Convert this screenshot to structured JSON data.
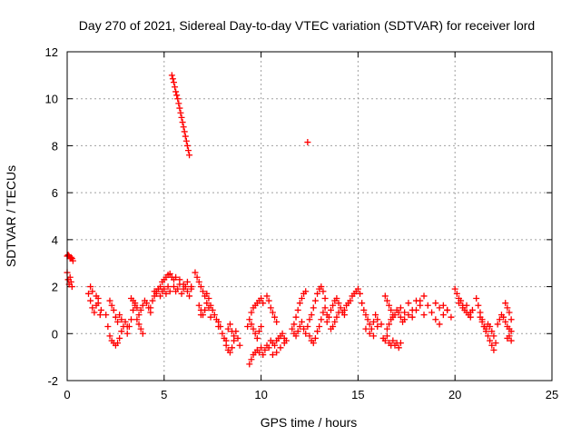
{
  "chart_data": {
    "type": "scatter",
    "title": "Day 270 of 2021, Sidereal Day-to-day VTEC variation (SDTVAR) for receiver lord",
    "xlabel": "GPS time / hours",
    "ylabel": "SDTVAR / TECUs",
    "xlim": [
      0,
      25
    ],
    "ylim": [
      -2,
      12
    ],
    "xticks": [
      0,
      5,
      10,
      15,
      20,
      25
    ],
    "yticks": [
      -2,
      0,
      2,
      4,
      6,
      8,
      10,
      12
    ],
    "grid": true,
    "marker": "plus",
    "color": "#ff0000",
    "series": [
      {
        "name": "SDTVAR",
        "segments": [
          {
            "x": [
              0.0,
              0.05,
              0.1,
              0.15,
              0.2,
              0.25,
              0.3
            ],
            "y": [
              3.3,
              3.35,
              3.3,
              3.2,
              3.25,
              3.2,
              3.1
            ]
          },
          {
            "x": [
              0.0,
              0.05,
              0.1,
              0.15,
              0.2,
              0.25
            ],
            "y": [
              2.6,
              2.3,
              2.1,
              2.4,
              2.2,
              2.0
            ]
          },
          {
            "x": [
              1.1,
              1.2,
              1.3,
              1.4,
              1.5,
              1.6,
              1.7
            ],
            "y": [
              1.7,
              1.4,
              1.1,
              0.9,
              1.2,
              1.5,
              0.8
            ]
          },
          {
            "x": [
              1.2,
              1.3,
              1.5,
              1.6,
              1.75
            ],
            "y": [
              2.0,
              1.8,
              1.6,
              1.3,
              1.0
            ]
          },
          {
            "x": [
              2.0,
              2.1,
              2.2,
              2.3,
              2.4,
              2.5,
              2.6,
              2.7,
              2.8,
              2.9,
              3.0,
              3.1
            ],
            "y": [
              0.8,
              0.3,
              -0.1,
              -0.3,
              -0.4,
              -0.5,
              -0.4,
              -0.2,
              0.1,
              0.3,
              0.5,
              0.3
            ]
          },
          {
            "x": [
              2.2,
              2.3,
              2.4,
              2.5,
              2.6,
              2.7,
              2.8
            ],
            "y": [
              1.4,
              1.2,
              1.0,
              0.7,
              0.5,
              0.8,
              0.6
            ]
          },
          {
            "x": [
              3.1,
              3.2,
              3.3,
              3.4,
              3.5,
              3.6,
              3.7,
              3.8,
              3.9,
              4.0,
              4.1,
              4.2,
              4.3
            ],
            "y": [
              0.0,
              0.3,
              0.6,
              1.0,
              1.3,
              1.1,
              0.8,
              1.0,
              1.2,
              1.4,
              1.3,
              1.1,
              0.9
            ]
          },
          {
            "x": [
              3.3,
              3.4,
              3.5,
              3.6,
              3.7,
              3.8,
              3.9
            ],
            "y": [
              1.5,
              1.4,
              1.2,
              0.6,
              0.4,
              0.2,
              0.0
            ]
          },
          {
            "x": [
              4.3,
              4.4,
              4.5,
              4.6,
              4.7,
              4.8,
              4.9,
              5.0,
              5.1,
              5.2,
              5.3,
              5.4,
              5.5
            ],
            "y": [
              1.1,
              1.4,
              1.6,
              1.8,
              1.9,
              2.0,
              2.2,
              2.3,
              2.4,
              2.5,
              2.55,
              2.4,
              2.3
            ]
          },
          {
            "x": [
              4.5,
              4.6,
              4.7,
              4.8,
              4.9,
              5.0,
              5.1,
              5.2,
              5.3
            ],
            "y": [
              1.8,
              1.7,
              1.9,
              1.6,
              1.8,
              1.9,
              1.7,
              2.0,
              1.8
            ]
          },
          {
            "x": [
              5.4,
              5.5,
              5.6,
              5.7,
              5.8,
              5.9,
              6.0,
              6.1,
              6.2,
              6.3
            ],
            "y": [
              11.0,
              10.7,
              10.3,
              10.0,
              9.6,
              9.2,
              8.8,
              8.4,
              8.0,
              7.6
            ]
          },
          {
            "x": [
              5.45,
              5.55,
              5.65,
              5.75,
              5.85,
              5.95,
              6.05,
              6.15,
              6.25
            ],
            "y": [
              10.85,
              10.5,
              10.15,
              9.8,
              9.4,
              9.0,
              8.6,
              8.2,
              7.8
            ]
          },
          {
            "x": [
              5.5,
              5.6,
              5.7,
              5.8,
              5.9,
              6.0,
              6.1,
              6.2,
              6.3,
              6.4
            ],
            "y": [
              2.0,
              1.8,
              1.9,
              2.1,
              1.7,
              1.9,
              2.0,
              1.8,
              1.6,
              1.9
            ]
          },
          {
            "x": [
              5.6,
              5.8,
              6.0,
              6.2,
              6.4
            ],
            "y": [
              2.4,
              2.3,
              2.1,
              2.2,
              2.0
            ]
          },
          {
            "x": [
              6.6,
              6.7,
              6.8,
              6.9,
              7.0,
              7.1
            ],
            "y": [
              2.6,
              2.4,
              2.2,
              2.0,
              1.8,
              1.6
            ]
          },
          {
            "x": [
              6.8,
              6.9,
              7.0,
              7.1,
              7.2,
              7.3,
              7.4
            ],
            "y": [
              1.2,
              1.0,
              0.8,
              1.0,
              1.3,
              1.1,
              0.7
            ]
          },
          {
            "x": [
              6.9
            ],
            "y": [
              0.8
            ]
          },
          {
            "x": [
              7.2,
              7.3,
              7.4,
              7.5,
              7.6,
              7.7,
              7.8
            ],
            "y": [
              1.7,
              1.5,
              1.2,
              1.0,
              0.8,
              0.6,
              0.3
            ]
          },
          {
            "x": [
              7.8,
              7.9,
              8.0,
              8.1,
              8.2,
              8.3,
              8.4,
              8.5,
              8.6
            ],
            "y": [
              0.5,
              0.3,
              0.0,
              -0.2,
              -0.3,
              0.2,
              0.4,
              0.1,
              -0.1
            ]
          },
          {
            "x": [
              8.2,
              8.3,
              8.4,
              8.5,
              8.6,
              8.7,
              8.8,
              8.9
            ],
            "y": [
              -0.5,
              -0.7,
              -0.8,
              -0.6,
              -0.3,
              0.1,
              -0.2,
              -0.5
            ]
          },
          {
            "x": [
              9.4,
              9.5,
              9.6,
              9.7,
              9.8,
              9.9,
              10.0,
              10.1,
              10.2,
              10.3,
              10.4
            ],
            "y": [
              -1.3,
              -1.1,
              -0.9,
              -0.8,
              -0.7,
              -0.8,
              -0.6,
              -0.9,
              -0.7,
              -0.5,
              -0.6
            ]
          },
          {
            "x": [
              9.3,
              9.4,
              9.5,
              9.6,
              9.7,
              9.8,
              9.9,
              10.0,
              10.1
            ],
            "y": [
              0.3,
              0.6,
              0.9,
              1.1,
              1.2,
              1.3,
              1.4,
              1.5,
              1.3
            ]
          },
          {
            "x": [
              9.5,
              9.6,
              9.7,
              9.8,
              9.9,
              10.0
            ],
            "y": [
              0.4,
              0.2,
              0.0,
              -0.2,
              0.1,
              0.3
            ]
          },
          {
            "x": [
              10.3,
              10.4,
              10.5,
              10.6,
              10.7,
              10.8
            ],
            "y": [
              1.6,
              1.4,
              1.1,
              0.9,
              0.7,
              0.5
            ]
          },
          {
            "x": [
              10.5,
              10.6,
              10.7,
              10.8,
              10.9,
              11.0,
              11.1,
              11.2,
              11.3
            ],
            "y": [
              -0.3,
              -0.4,
              -0.5,
              -0.3,
              -0.2,
              -0.1,
              0.0,
              -0.2,
              -0.3
            ]
          },
          {
            "x": [
              10.6,
              10.8,
              11.0,
              11.2
            ],
            "y": [
              -0.9,
              -0.8,
              -0.6,
              -0.4
            ]
          },
          {
            "x": [
              11.6,
              11.7,
              11.8,
              11.9,
              12.0,
              12.1,
              12.2,
              12.3
            ],
            "y": [
              0.2,
              0.4,
              0.7,
              1.0,
              1.3,
              1.5,
              1.7,
              1.8
            ]
          },
          {
            "x": [
              11.7,
              11.8,
              11.9,
              12.0,
              12.1,
              12.2,
              12.3,
              12.4,
              12.5
            ],
            "y": [
              0.0,
              -0.1,
              0.1,
              0.3,
              0.5,
              0.2,
              0.0,
              0.3,
              0.6
            ]
          },
          {
            "x": [
              12.4
            ],
            "y": [
              8.15
            ]
          },
          {
            "x": [
              12.5,
              12.6,
              12.7,
              12.8,
              12.9,
              13.0,
              13.1,
              13.2,
              13.3,
              13.4
            ],
            "y": [
              -0.1,
              -0.3,
              -0.4,
              -0.2,
              0.1,
              0.3,
              0.6,
              0.9,
              1.1,
              0.8
            ]
          },
          {
            "x": [
              12.6,
              12.7,
              12.8,
              12.9,
              13.0,
              13.1,
              13.2,
              13.3
            ],
            "y": [
              0.8,
              1.1,
              1.4,
              1.7,
              1.9,
              2.0,
              1.8,
              1.5
            ]
          },
          {
            "x": [
              13.4,
              13.5,
              13.6,
              13.7,
              13.8,
              13.9,
              14.0,
              14.1,
              14.2,
              14.3
            ],
            "y": [
              0.5,
              0.7,
              1.0,
              1.2,
              1.4,
              1.5,
              1.3,
              1.1,
              0.9,
              0.8
            ]
          },
          {
            "x": [
              13.6,
              13.7,
              13.8,
              13.9,
              14.0
            ],
            "y": [
              0.2,
              0.3,
              0.5,
              0.7,
              0.9
            ]
          },
          {
            "x": [
              14.3,
              14.4,
              14.5,
              14.6,
              14.7,
              14.8,
              14.9,
              15.0,
              15.1
            ],
            "y": [
              1.0,
              1.2,
              1.3,
              1.4,
              1.6,
              1.7,
              1.8,
              1.9,
              1.7
            ]
          },
          {
            "x": [
              15.2,
              15.3,
              15.4,
              15.5,
              15.6,
              15.7,
              15.8,
              15.9,
              16.0
            ],
            "y": [
              1.3,
              1.0,
              0.8,
              0.6,
              0.4,
              0.2,
              0.5,
              0.8,
              0.6
            ]
          },
          {
            "x": [
              15.4,
              15.6,
              15.8,
              16.0,
              16.2
            ],
            "y": [
              0.2,
              0.0,
              -0.1,
              0.3,
              0.4
            ]
          },
          {
            "x": [
              16.3,
              16.4,
              16.5,
              16.6,
              16.7,
              16.8,
              16.9,
              17.0,
              17.1,
              17.2
            ],
            "y": [
              -0.2,
              -0.3,
              -0.1,
              -0.4,
              -0.5,
              -0.3,
              -0.5,
              -0.4,
              -0.6,
              -0.4
            ]
          },
          {
            "x": [
              16.5,
              16.6,
              16.7,
              16.8,
              16.9,
              17.0,
              17.1,
              17.2,
              17.3
            ],
            "y": [
              0.2,
              0.4,
              0.6,
              0.7,
              0.8,
              1.0,
              0.9,
              0.7,
              0.5
            ]
          },
          {
            "x": [
              16.4,
              16.5,
              16.6,
              16.7,
              16.8
            ],
            "y": [
              1.6,
              1.4,
              1.2,
              1.0,
              0.8
            ]
          },
          {
            "x": [
              17.2,
              17.4,
              17.6,
              17.8,
              18.0,
              18.2,
              18.4,
              18.6
            ],
            "y": [
              1.1,
              0.9,
              1.3,
              1.0,
              1.4,
              1.2,
              0.8,
              1.2
            ]
          },
          {
            "x": [
              17.4,
              17.6,
              17.8,
              18.0,
              18.2,
              18.4
            ],
            "y": [
              0.6,
              0.8,
              0.7,
              1.0,
              1.4,
              1.6
            ]
          },
          {
            "x": [
              18.8,
              19.0,
              19.2,
              19.4,
              19.6,
              19.8
            ],
            "y": [
              0.9,
              0.6,
              0.4,
              0.8,
              1.0,
              0.7
            ]
          },
          {
            "x": [
              19.0,
              19.2,
              19.4,
              19.6
            ],
            "y": [
              1.3,
              1.1,
              1.2,
              1.0
            ]
          },
          {
            "x": [
              20.0,
              20.1,
              20.2,
              20.3,
              20.4,
              20.5,
              20.6,
              20.7,
              20.8,
              20.9
            ],
            "y": [
              1.9,
              1.7,
              1.5,
              1.4,
              1.2,
              1.0,
              0.9,
              0.8,
              0.7,
              1.0
            ]
          },
          {
            "x": [
              20.2,
              20.4,
              20.6,
              20.8
            ],
            "y": [
              1.3,
              1.1,
              1.2,
              0.9
            ]
          },
          {
            "x": [
              21.1,
              21.2,
              21.3,
              21.4,
              21.5,
              21.6,
              21.7,
              21.8,
              21.9,
              22.0
            ],
            "y": [
              1.5,
              1.2,
              0.9,
              0.6,
              0.3,
              0.1,
              -0.1,
              -0.3,
              -0.5,
              -0.7
            ]
          },
          {
            "x": [
              21.3,
              21.4,
              21.5,
              21.6,
              21.7,
              21.8,
              21.9,
              22.0,
              22.1
            ],
            "y": [
              0.7,
              0.5,
              0.3,
              0.2,
              0.4,
              0.3,
              0.1,
              -0.1,
              -0.4
            ]
          },
          {
            "x": [
              22.2,
              22.3,
              22.4,
              22.5,
              22.6,
              22.7,
              22.8,
              22.9
            ],
            "y": [
              0.4,
              0.6,
              0.8,
              0.7,
              0.5,
              0.3,
              0.2,
              0.1
            ]
          },
          {
            "x": [
              22.6,
              22.7,
              22.8,
              22.9
            ],
            "y": [
              1.3,
              1.1,
              0.9,
              0.6
            ]
          },
          {
            "x": [
              22.7,
              22.8,
              22.9
            ],
            "y": [
              -0.2,
              -0.1,
              -0.3
            ]
          }
        ]
      }
    ]
  }
}
